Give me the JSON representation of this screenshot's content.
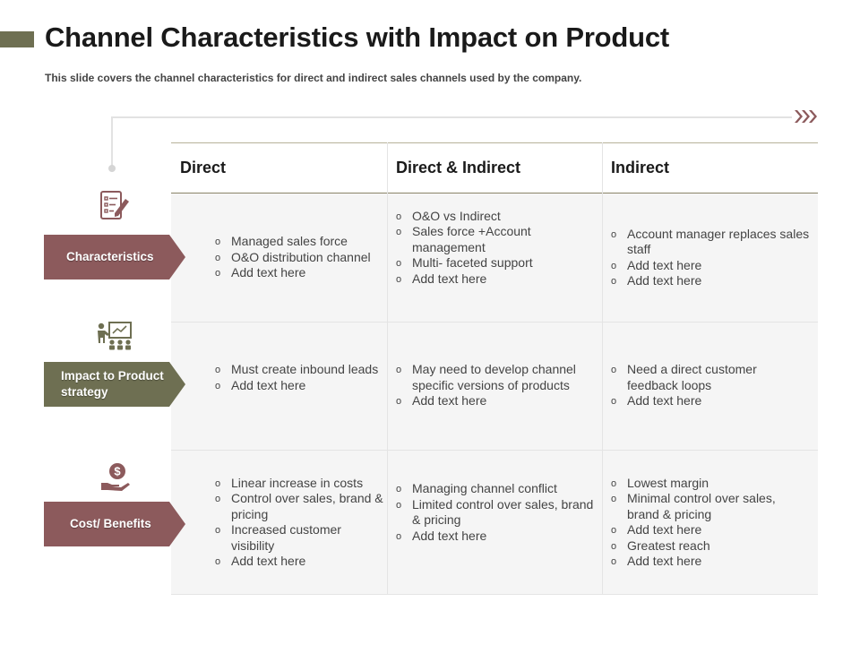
{
  "title": "Channel Characteristics with Impact on Product",
  "subtitle": "This slide covers the channel characteristics for direct and indirect sales channels used by the company.",
  "colors": {
    "red": "#8c5a5c",
    "olive": "#6e6f52",
    "row_bg": "#f5f5f5"
  },
  "columns": [
    "Direct",
    "Direct & Indirect",
    "Indirect"
  ],
  "rows": [
    {
      "label": "Characteristics",
      "icon": "checklist-icon",
      "cells": [
        [
          "Managed sales force",
          "O&O distribution channel",
          "Add text here"
        ],
        [
          "O&O vs Indirect",
          "Sales force +Account management",
          "Multi- faceted support",
          "Add text here"
        ],
        [
          "Account manager replaces sales staff",
          "Add text here",
          "Add text here"
        ]
      ]
    },
    {
      "label": "Impact to Product strategy",
      "icon": "presentation-icon",
      "cells": [
        [
          "Must create inbound leads",
          "Add text here"
        ],
        [
          "May need to develop channel specific versions of products",
          "Add text here"
        ],
        [
          "Need a direct customer feedback loops",
          "Add text here"
        ]
      ]
    },
    {
      "label": "Cost/ Benefits",
      "icon": "money-hand-icon",
      "cells": [
        [
          "Linear increase in costs",
          "Control over sales, brand & pricing",
          "Increased customer visibility",
          "Add text here"
        ],
        [
          "Managing channel conflict",
          "Limited control over sales, brand & pricing",
          "Add text here"
        ],
        [
          "Lowest margin",
          "Minimal control over sales, brand & pricing",
          "Add text here",
          "Greatest reach",
          "Add text here"
        ]
      ]
    }
  ]
}
